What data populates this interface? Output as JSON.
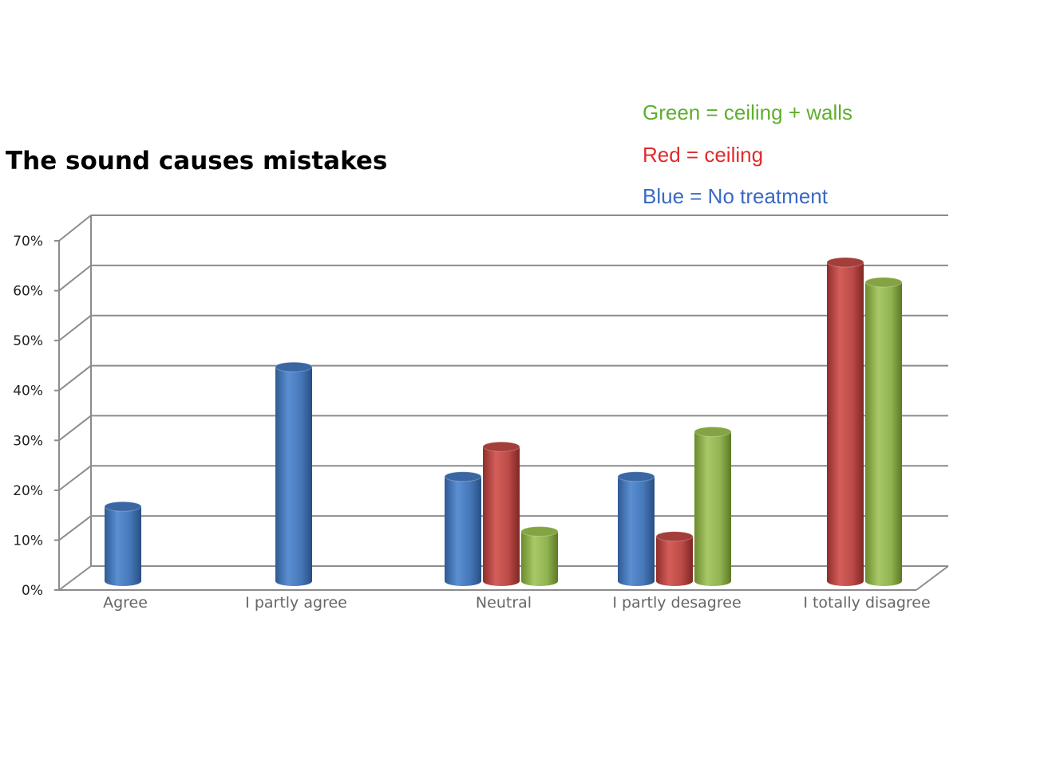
{
  "chart_data": {
    "type": "bar",
    "title": "The sound causes mistakes",
    "categories": [
      "Agree",
      "I partly agree",
      "Neutral",
      "I partly desagree",
      "I totally disagree"
    ],
    "y_ticks": [
      "0%",
      "10%",
      "20%",
      "30%",
      "40%",
      "50%",
      "60%",
      "70%"
    ],
    "ylim": [
      0,
      70
    ],
    "grid": true,
    "legend": [
      {
        "text": "Green = ceiling + walls",
        "color": "#5fae2e"
      },
      {
        "text": "Red = ceiling",
        "color": "#e02b2b"
      },
      {
        "text": "Blue = No treatment",
        "color": "#3a69c4"
      }
    ],
    "series": [
      {
        "color": "#4f81bd",
        "values": [
          15,
          43,
          21,
          21,
          null
        ]
      },
      {
        "color": "#c0504d",
        "values": [
          null,
          null,
          27,
          9,
          64
        ]
      },
      {
        "color": "#9bbb59",
        "values": [
          null,
          null,
          10,
          30,
          60
        ]
      }
    ]
  }
}
